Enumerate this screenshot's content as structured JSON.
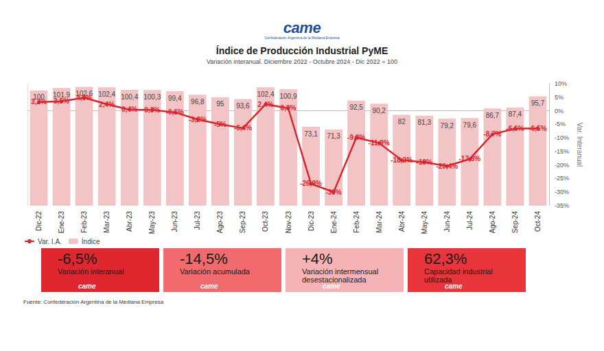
{
  "header": {
    "logo": "came",
    "logo_caption": "Confederación Argentina de la Mediana Empresa"
  },
  "chart_data": {
    "type": "bar",
    "title": "Índice de Producción Industrial PyME",
    "subtitle": "Variación interanual. Diciembre 2022 - Octubre 2024 - Dic 2022 = 100",
    "categories": [
      "Dic-22",
      "Ene-23",
      "Feb-23",
      "Mar-23",
      "Abr-23",
      "May-23",
      "Jun-23",
      "Jul-23",
      "Ago-23",
      "Sep-23",
      "Oct-23",
      "Nov-23",
      "Dic-23",
      "Ene-24",
      "Feb-24",
      "Mar-24",
      "Abr-24",
      "May-24",
      "Jun-24",
      "Jul-24",
      "Ago-24",
      "Sep-24",
      "Oct-24"
    ],
    "series": [
      {
        "name": "Var. I.A.",
        "type": "line",
        "axis": "y2",
        "color": "#d7262e",
        "marker": "circle",
        "values": [
          3.2,
          3.5,
          4.8,
          2.4,
          0.4,
          0.3,
          -0.6,
          -3.2,
          -5,
          -6.4,
          2.4,
          0.9,
          -26.9,
          -30,
          -9.9,
          -11.9,
          -18.2,
          -19,
          -20.4,
          -17.8,
          -8.7,
          -6.6,
          -6.5
        ],
        "value_labels": [
          "3,2%",
          "3,5%",
          "4,8%",
          "2,4%",
          "0,4%",
          "0,3%",
          "-0,6%",
          "-3,2%",
          "-5%",
          "-6,4%",
          "2,4%",
          "0,9%",
          "-26,9%",
          "-30%",
          "-9,9%",
          "-11,9%",
          "-18,2%",
          "-19%",
          "-20,4%",
          "-17,8%",
          "-8,7%",
          "-6,6%",
          "-6,5%"
        ]
      },
      {
        "name": "Índice",
        "type": "bar",
        "color": "#f2c4c6",
        "values": [
          100,
          101.9,
          102.6,
          102.4,
          100.4,
          100.3,
          99.4,
          96.8,
          95,
          93.6,
          102.4,
          100.9,
          73.1,
          71.3,
          92.5,
          90.2,
          82,
          81.3,
          79.2,
          79.6,
          86.7,
          87.4,
          95.7
        ],
        "value_labels": [
          "100",
          "101,9",
          "102,6",
          "102,4",
          "100,4",
          "100,3",
          "99,4",
          "96,8",
          "95",
          "93,6",
          "102,4",
          "100,9",
          "73,1",
          "71,3",
          "92,5",
          "90,2",
          "82",
          "81,3",
          "79,2",
          "79,6",
          "86,7",
          "87,4",
          "95,7"
        ]
      }
    ],
    "ylim": [
      15,
      105
    ],
    "y2lim": [
      -35,
      10
    ],
    "y2ticks": [
      {
        "value": -35,
        "label": "-35%"
      },
      {
        "value": -30,
        "label": "-30%"
      },
      {
        "value": -25,
        "label": "-25%"
      },
      {
        "value": -20,
        "label": "-20%"
      },
      {
        "value": -15,
        "label": "-15%"
      },
      {
        "value": -10,
        "label": "-10%"
      },
      {
        "value": -5,
        "label": "-5%"
      },
      {
        "value": 0,
        "label": "0%"
      },
      {
        "value": 5,
        "label": "5%"
      },
      {
        "value": 10,
        "label": "10%"
      }
    ],
    "y2label": "Var. Interanual",
    "legend": "bottom-left",
    "data_labels": true,
    "grid": false
  },
  "summary": [
    {
      "value": "-6,5%",
      "label": "Variación interanual",
      "color": "#e0262e"
    },
    {
      "value": "-14,5%",
      "label": "Variación acumulada",
      "color": "#f06a6e"
    },
    {
      "value": "+4%",
      "label": "Variación intermensual desestacionalizada",
      "color": "#f6b3b5"
    },
    {
      "value": "62,3%",
      "label": "Capacidad industrial utilizada",
      "color": "#e8343b"
    }
  ],
  "source": "Fuente: Confederación Argentina de la Mediana Empresa"
}
